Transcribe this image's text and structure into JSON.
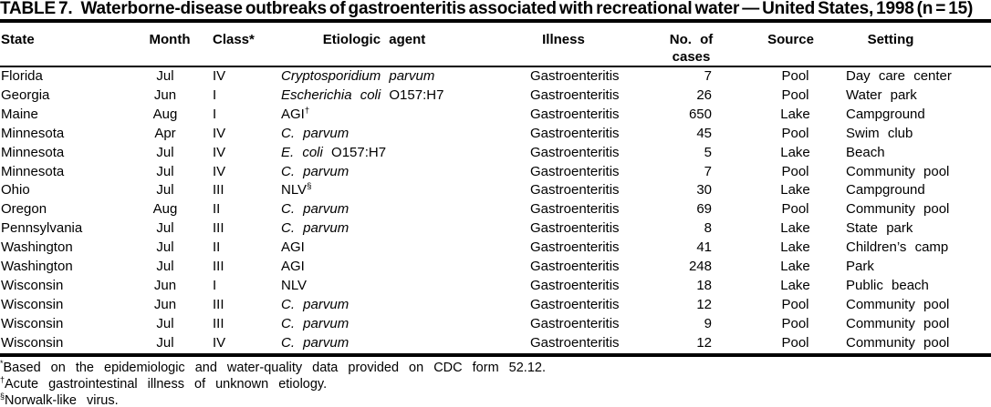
{
  "title": {
    "prefix": "TABLE 7.",
    "text": "Waterborne-disease outbreaks of gastroenteritis associated with recreational water — United States, 1998 (n = 15)"
  },
  "table": {
    "columns": [
      "State",
      "Month",
      "Class*",
      "Etiologic agent",
      "Illness",
      "No. of cases",
      "Source",
      "Setting"
    ],
    "rows": [
      {
        "state": "Florida",
        "month": "Jul",
        "class": "IV",
        "agent": [
          [
            "italic",
            "Cryptosporidium parvum"
          ]
        ],
        "illness": "Gastroenteritis",
        "cases": "7",
        "source": "Pool",
        "setting": "Day care center"
      },
      {
        "state": "Georgia",
        "month": "Jun",
        "class": "I",
        "agent": [
          [
            "italic",
            "Escherichia coli"
          ],
          [
            "roman",
            " O157:H7"
          ]
        ],
        "illness": "Gastroenteritis",
        "cases": "26",
        "source": "Pool",
        "setting": "Water park"
      },
      {
        "state": "Maine",
        "month": "Aug",
        "class": "I",
        "agent": [
          [
            "roman",
            "AGI"
          ],
          [
            "sup",
            "†"
          ]
        ],
        "illness": "Gastroenteritis",
        "cases": "650",
        "source": "Lake",
        "setting": "Campground"
      },
      {
        "state": "Minnesota",
        "month": "Apr",
        "class": "IV",
        "agent": [
          [
            "italic",
            "C. parvum"
          ]
        ],
        "illness": "Gastroenteritis",
        "cases": "45",
        "source": "Pool",
        "setting": "Swim club"
      },
      {
        "state": "Minnesota",
        "month": "Jul",
        "class": "IV",
        "agent": [
          [
            "italic",
            "E. coli"
          ],
          [
            "roman",
            " O157:H7"
          ]
        ],
        "illness": "Gastroenteritis",
        "cases": "5",
        "source": "Lake",
        "setting": "Beach"
      },
      {
        "state": "Minnesota",
        "month": "Jul",
        "class": "IV",
        "agent": [
          [
            "italic",
            "C. parvum"
          ]
        ],
        "illness": "Gastroenteritis",
        "cases": "7",
        "source": "Pool",
        "setting": "Community pool"
      },
      {
        "state": "Ohio",
        "month": "Jul",
        "class": "III",
        "agent": [
          [
            "roman",
            "NLV"
          ],
          [
            "sup",
            "§"
          ]
        ],
        "illness": "Gastroenteritis",
        "cases": "30",
        "source": "Lake",
        "setting": "Campground"
      },
      {
        "state": "Oregon",
        "month": "Aug",
        "class": "II",
        "agent": [
          [
            "italic",
            "C. parvum"
          ]
        ],
        "illness": "Gastroenteritis",
        "cases": "69",
        "source": "Pool",
        "setting": "Community pool"
      },
      {
        "state": "Pennsylvania",
        "month": "Jul",
        "class": "III",
        "agent": [
          [
            "italic",
            "C. parvum"
          ]
        ],
        "illness": "Gastroenteritis",
        "cases": "8",
        "source": "Lake",
        "setting": "State park"
      },
      {
        "state": "Washington",
        "month": "Jul",
        "class": "II",
        "agent": [
          [
            "roman",
            "AGI"
          ]
        ],
        "illness": "Gastroenteritis",
        "cases": "41",
        "source": "Lake",
        "setting": "Children’s camp"
      },
      {
        "state": "Washington",
        "month": "Jul",
        "class": "III",
        "agent": [
          [
            "roman",
            "AGI"
          ]
        ],
        "illness": "Gastroenteritis",
        "cases": "248",
        "source": "Lake",
        "setting": "Park"
      },
      {
        "state": "Wisconsin",
        "month": "Jun",
        "class": "I",
        "agent": [
          [
            "roman",
            "NLV"
          ]
        ],
        "illness": "Gastroenteritis",
        "cases": "18",
        "source": "Lake",
        "setting": "Public beach"
      },
      {
        "state": "Wisconsin",
        "month": "Jun",
        "class": "III",
        "agent": [
          [
            "italic",
            "C. parvum"
          ]
        ],
        "illness": "Gastroenteritis",
        "cases": "12",
        "source": "Pool",
        "setting": "Community pool"
      },
      {
        "state": "Wisconsin",
        "month": "Jul",
        "class": "III",
        "agent": [
          [
            "italic",
            "C. parvum"
          ]
        ],
        "illness": "Gastroenteritis",
        "cases": "9",
        "source": "Pool",
        "setting": "Community pool"
      },
      {
        "state": "Wisconsin",
        "month": "Jul",
        "class": "IV",
        "agent": [
          [
            "italic",
            "C. parvum"
          ]
        ],
        "illness": "Gastroenteritis",
        "cases": "12",
        "source": "Pool",
        "setting": "Community pool"
      }
    ]
  },
  "footnotes": [
    {
      "marker": "*",
      "text": "Based on the epidemiologic and water-quality data provided on CDC form 52.12."
    },
    {
      "marker": "†",
      "text": "Acute gastrointestinal illness of unknown etiology."
    },
    {
      "marker": "§",
      "text": "Norwalk-like virus."
    }
  ],
  "colors": {
    "text": "#000000",
    "background": "#ffffff",
    "rule": "#000000"
  }
}
